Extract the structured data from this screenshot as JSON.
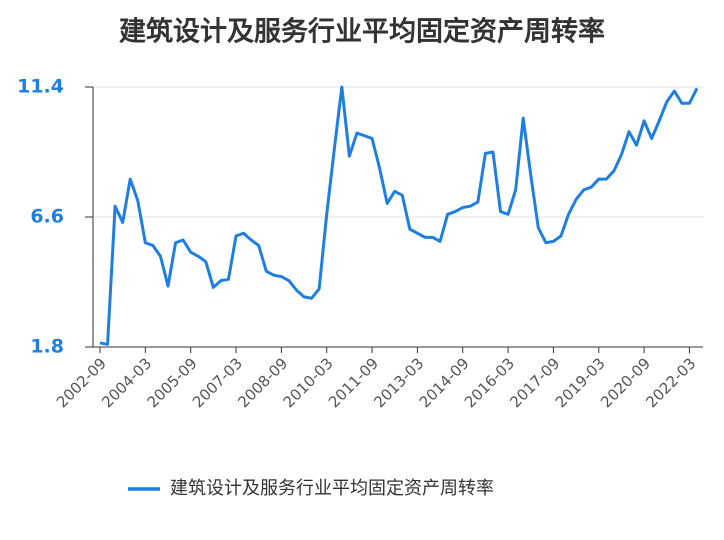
{
  "chart_data": {
    "type": "line",
    "title": "建筑设计及服务行业平均固定资产周转率",
    "categories": [
      "2002-09",
      null,
      null,
      null,
      null,
      null,
      "2004-03",
      null,
      null,
      null,
      null,
      null,
      "2005-09",
      null,
      null,
      null,
      null,
      null,
      "2007-03",
      null,
      null,
      null,
      null,
      null,
      "2008-09",
      null,
      null,
      null,
      null,
      null,
      "2010-03",
      null,
      null,
      null,
      null,
      null,
      "2011-09",
      null,
      null,
      null,
      null,
      null,
      "2013-03",
      null,
      null,
      null,
      null,
      null,
      "2014-09",
      null,
      null,
      null,
      null,
      null,
      "2016-03",
      null,
      null,
      null,
      null,
      null,
      "2017-09",
      null,
      null,
      null,
      null,
      null,
      "2019-03",
      null,
      null,
      null,
      null,
      null,
      "2020-09",
      null,
      null,
      null,
      null,
      null,
      "2022-03",
      null
    ],
    "series": [
      {
        "name": "建筑设计及服务行业平均固定资产周转率",
        "color": "#1e7fe0",
        "values": [
          1.95,
          1.9,
          7.0,
          6.4,
          8.0,
          7.2,
          5.65,
          5.55,
          5.15,
          4.05,
          5.65,
          5.75,
          5.3,
          5.15,
          4.95,
          4.0,
          4.25,
          4.3,
          5.9,
          6.0,
          5.75,
          5.55,
          4.6,
          4.45,
          4.4,
          4.25,
          3.9,
          3.65,
          3.6,
          3.95,
          6.7,
          9.1,
          11.4,
          8.85,
          9.7,
          9.6,
          9.5,
          8.4,
          7.1,
          7.55,
          7.4,
          6.15,
          6.0,
          5.85,
          5.85,
          5.7,
          6.7,
          6.8,
          6.95,
          7.0,
          7.15,
          8.95,
          9.0,
          6.8,
          6.7,
          7.6,
          10.25,
          8.15,
          6.2,
          5.65,
          5.7,
          5.9,
          6.7,
          7.25,
          7.6,
          7.7,
          8.0,
          8.0,
          8.3,
          8.9,
          9.75,
          9.25,
          10.15,
          9.5,
          10.15,
          10.85,
          11.25,
          10.8,
          10.8,
          11.35
        ]
      }
    ],
    "ylim": [
      1.8,
      11.4
    ],
    "yticks": [
      1.8,
      6.6,
      11.4
    ],
    "grid": true,
    "legend": "bottom"
  }
}
